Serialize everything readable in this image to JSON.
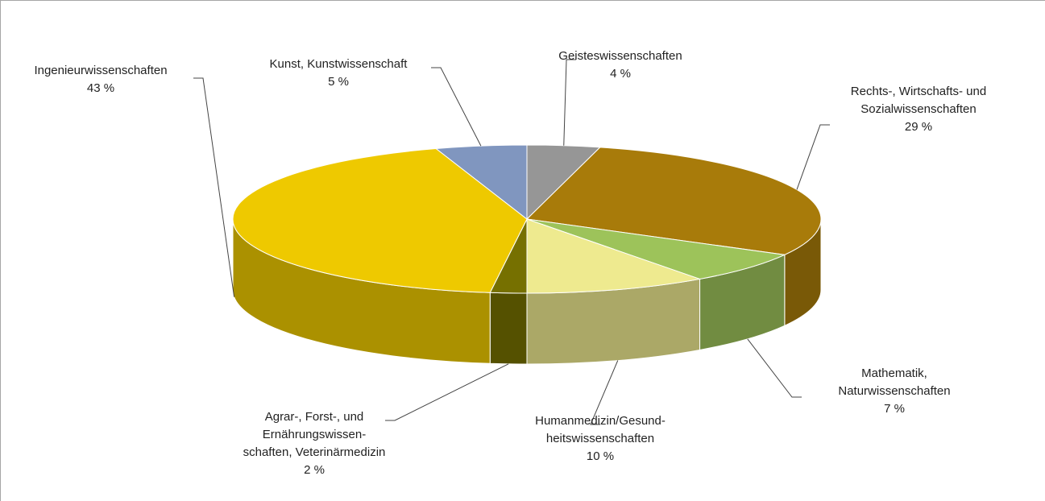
{
  "chart_data": {
    "type": "pie3d",
    "categories": [
      "Geisteswissenschaften",
      "Rechts-, Wirtschafts- und\nSozialwissenschaften",
      "Mathematik,\nNaturwissenschaften",
      "Humanmedizin/Gesund-\nheitswissenschaften",
      "Agrar-, Forst-, und\nErnährungswissen-\nschaften, Veterinärmedizin",
      "Ingenieurwissenschaften",
      "Kunst, Kunstwissenschaft"
    ],
    "values": [
      4,
      29,
      7,
      10,
      2,
      43,
      5
    ],
    "value_labels": [
      "4 %",
      "29 %",
      "7 %",
      "10 %",
      "2 %",
      "43 %",
      "5 %"
    ],
    "colors": [
      "#969696",
      "#a87b0a",
      "#9dc35a",
      "#eeea8f",
      "#767000",
      "#eec900",
      "#8096bf"
    ]
  }
}
